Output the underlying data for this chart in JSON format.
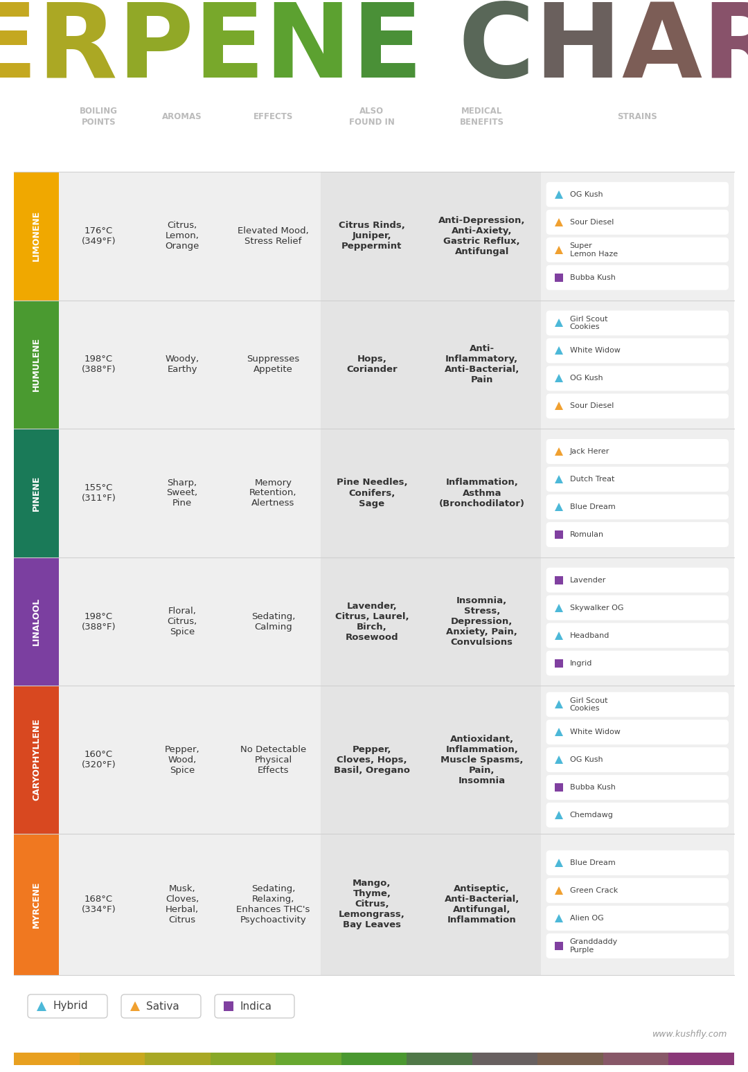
{
  "bg_color": "#FFFFFF",
  "header_color": "#BBBBBB",
  "headers": [
    "BOILING\nPOINTS",
    "AROMAS",
    "EFFECTS",
    "ALSO\nFOUND IN",
    "MEDICAL\nBENEFITS",
    "STRAINS"
  ],
  "row_label_bg": [
    "#F0A800",
    "#4A9A30",
    "#1A7A58",
    "#7B3FA0",
    "#D84820",
    "#F07820"
  ],
  "cell_bg_even": "#F2F2F2",
  "cell_bg_odd": "#EBEBEB",
  "rows": [
    {
      "label": "LIMONENE",
      "boiling": "176°C\n(349°F)",
      "aromas": "Citrus,\nLemon,\nOrange",
      "effects": "Elevated Mood,\nStress Relief",
      "found_in": "Citrus Rinds,\nJuniper,\nPeppermint",
      "medical": "Anti-Depression,\nAnti-Axiety,\nGastric Reflux,\nAntifungal",
      "strains": [
        {
          "name": "OG Kush",
          "type": "hybrid"
        },
        {
          "name": "Sour Diesel",
          "type": "sativa"
        },
        {
          "name": "Super\nLemon Haze",
          "type": "sativa"
        },
        {
          "name": "Bubba Kush",
          "type": "indica"
        }
      ]
    },
    {
      "label": "HUMULENE",
      "boiling": "198°C\n(388°F)",
      "aromas": "Woody,\nEarthy",
      "effects": "Suppresses\nAppetite",
      "found_in": "Hops,\nCoriander",
      "medical": "Anti-\nInflammatory,\nAnti-Bacterial,\nPain",
      "strains": [
        {
          "name": "Girl Scout\nCookies",
          "type": "hybrid"
        },
        {
          "name": "White Widow",
          "type": "hybrid"
        },
        {
          "name": "OG Kush",
          "type": "hybrid"
        },
        {
          "name": "Sour Diesel",
          "type": "sativa"
        }
      ]
    },
    {
      "label": "PINENE",
      "boiling": "155°C\n(311°F)",
      "aromas": "Sharp,\nSweet,\nPine",
      "effects": "Memory\nRetention,\nAlertness",
      "found_in": "Pine Needles,\nConifers,\nSage",
      "medical": "Inflammation,\nAsthma\n(Bronchodilator)",
      "strains": [
        {
          "name": "Jack Herer",
          "type": "sativa"
        },
        {
          "name": "Dutch Treat",
          "type": "hybrid"
        },
        {
          "name": "Blue Dream",
          "type": "hybrid"
        },
        {
          "name": "Romulan",
          "type": "indica"
        }
      ]
    },
    {
      "label": "LINALOOL",
      "boiling": "198°C\n(388°F)",
      "aromas": "Floral,\nCitrus,\nSpice",
      "effects": "Sedating,\nCalming",
      "found_in": "Lavender,\nCitrus, Laurel,\nBirch,\nRosewood",
      "medical": "Insomnia,\nStress,\nDepression,\nAnxiety, Pain,\nConvulsions",
      "strains": [
        {
          "name": "Lavender",
          "type": "indica"
        },
        {
          "name": "Skywalker OG",
          "type": "hybrid"
        },
        {
          "name": "Headband",
          "type": "hybrid"
        },
        {
          "name": "Ingrid",
          "type": "indica"
        }
      ]
    },
    {
      "label": "CARYOPHYLLENE",
      "boiling": "160°C\n(320°F)",
      "aromas": "Pepper,\nWood,\nSpice",
      "effects": "No Detectable\nPhysical\nEffects",
      "found_in": "Pepper,\nCloves, Hops,\nBasil, Oregano",
      "medical": "Antioxidant,\nInflammation,\nMuscle Spasms,\nPain,\nInsomnia",
      "strains": [
        {
          "name": "Girl Scout\nCookies",
          "type": "hybrid"
        },
        {
          "name": "White Widow",
          "type": "hybrid"
        },
        {
          "name": "OG Kush",
          "type": "hybrid"
        },
        {
          "name": "Bubba Kush",
          "type": "indica"
        },
        {
          "name": "Chemdawg",
          "type": "hybrid"
        }
      ]
    },
    {
      "label": "MYRCENE",
      "boiling": "168°C\n(334°F)",
      "aromas": "Musk,\nCloves,\nHerbal,\nCitrus",
      "effects": "Sedating,\nRelaxing,\nEnhances THC's\nPsychoactivity",
      "found_in": "Mango,\nThyme,\nCitrus,\nLemongrass,\nBay Leaves",
      "medical": "Antiseptic,\nAnti-Bacterial,\nAntifungal,\nInflammation",
      "strains": [
        {
          "name": "Blue Dream",
          "type": "hybrid"
        },
        {
          "name": "Green Crack",
          "type": "sativa"
        },
        {
          "name": "Alien OG",
          "type": "hybrid"
        },
        {
          "name": "Granddaddy\nPurple",
          "type": "indica"
        }
      ]
    }
  ],
  "legend": [
    {
      "label": "Hybrid",
      "type": "hybrid"
    },
    {
      "label": "Sativa",
      "type": "sativa"
    },
    {
      "label": "Indica",
      "type": "indica"
    }
  ],
  "hybrid_color": "#4CB8D8",
  "sativa_color": "#F0A030",
  "indica_color": "#8040A0",
  "footer_text": "www.kushfly.com",
  "title_color_stops": [
    [
      0.0,
      "#E8A020"
    ],
    [
      0.1,
      "#C8A820"
    ],
    [
      0.2,
      "#A8A825"
    ],
    [
      0.3,
      "#88A828"
    ],
    [
      0.4,
      "#68A830"
    ],
    [
      0.48,
      "#4A9830"
    ],
    [
      0.55,
      "#4A8840"
    ],
    [
      0.62,
      "#586858"
    ],
    [
      0.7,
      "#686060"
    ],
    [
      0.78,
      "#786050"
    ],
    [
      0.86,
      "#885868"
    ],
    [
      1.0,
      "#8A3878"
    ]
  ]
}
